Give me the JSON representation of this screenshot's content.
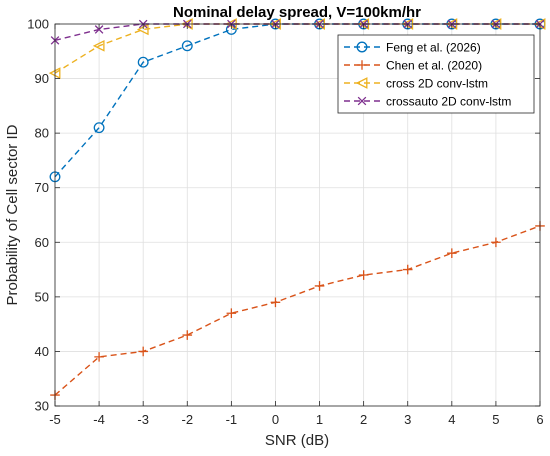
{
  "chart_data": {
    "type": "line",
    "title": "Nominal delay spread, V=100km/hr",
    "xlabel": "SNR (dB)",
    "ylabel": "Probability of Cell sector ID",
    "x": [
      -5,
      -4,
      -3,
      -2,
      -1,
      0,
      1,
      2,
      3,
      4,
      5,
      6
    ],
    "xlim": [
      -5,
      6
    ],
    "ylim": [
      30,
      100
    ],
    "xticks": [
      "-5",
      "-4",
      "-3",
      "-2",
      "-1",
      "0",
      "1",
      "2",
      "3",
      "4",
      "5",
      "6"
    ],
    "yticks": [
      "30",
      "40",
      "50",
      "60",
      "70",
      "80",
      "90",
      "100"
    ],
    "grid": true,
    "legend_position": "top-right",
    "series": [
      {
        "name": "Feng et al. (2026)",
        "color": "#0072BD",
        "marker": "circle",
        "values": [
          72,
          81,
          93,
          96,
          99,
          100,
          100,
          100,
          100,
          100,
          100,
          100
        ]
      },
      {
        "name": "Chen et al. (2020)",
        "color": "#D95319",
        "marker": "plus",
        "values": [
          32,
          39,
          40,
          43,
          47,
          49,
          52,
          54,
          55,
          58,
          60,
          63
        ]
      },
      {
        "name": "cross 2D conv-lstm",
        "color": "#EDB120",
        "marker": "triangle-left",
        "values": [
          91,
          96,
          99,
          100,
          100,
          100,
          100,
          100,
          100,
          100,
          100,
          100
        ]
      },
      {
        "name": "crossauto 2D conv-lstm",
        "color": "#7E2F8E",
        "marker": "x",
        "values": [
          97,
          99,
          100,
          100,
          100,
          100,
          100,
          100,
          100,
          100,
          100,
          100
        ]
      }
    ]
  }
}
